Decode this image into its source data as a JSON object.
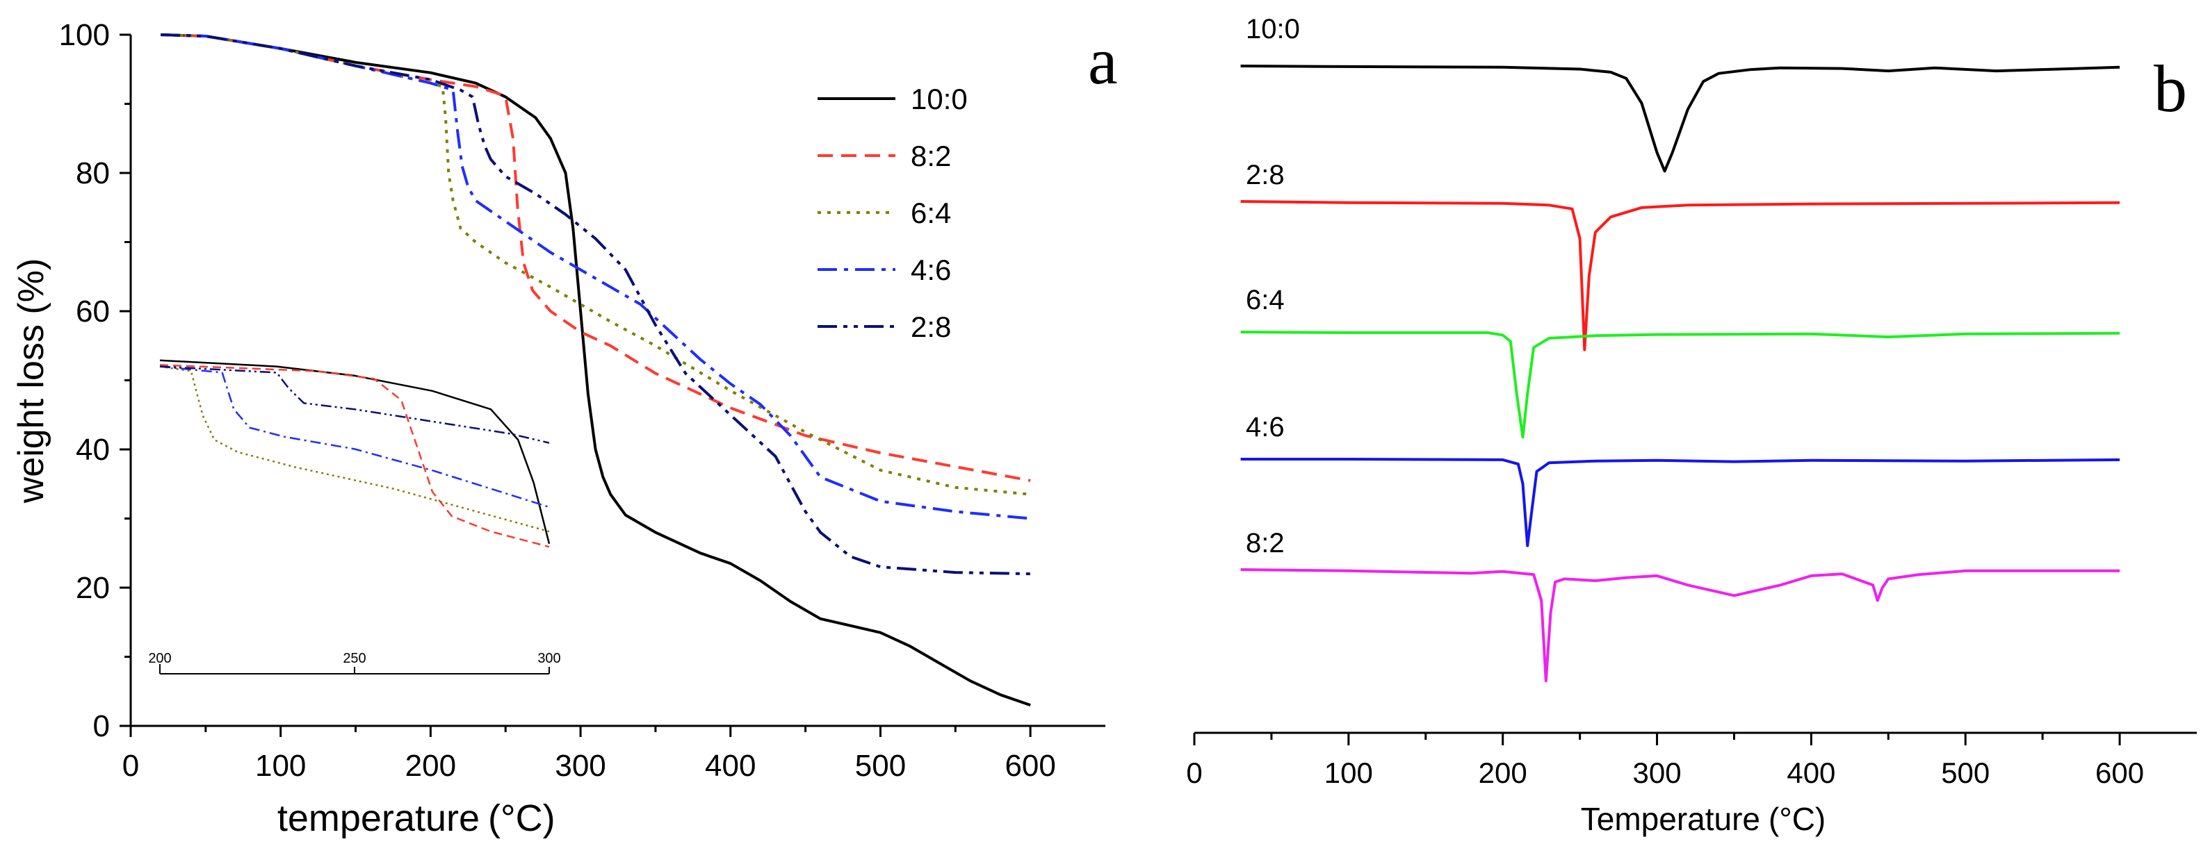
{
  "chart_data": [
    {
      "type": "line",
      "panel_label": "a",
      "xlabel": "temperature",
      "ylabel": "weight loss (%)",
      "x_unit": "(°C)",
      "xlim": [
        0,
        650
      ],
      "ylim": [
        0,
        100
      ],
      "xticks": [
        0,
        100,
        200,
        300,
        400,
        500,
        600
      ],
      "yticks": [
        0,
        20,
        40,
        60,
        80,
        100
      ],
      "legend_position": "top-right",
      "series": [
        {
          "name": "10:0",
          "color": "#000000",
          "dash": "solid",
          "x": [
            20,
            50,
            100,
            150,
            200,
            230,
            250,
            270,
            280,
            290,
            295,
            300,
            305,
            310,
            315,
            320,
            330,
            350,
            380,
            400,
            420,
            440,
            460,
            480,
            500,
            520,
            540,
            560,
            580,
            600
          ],
          "y": [
            100,
            99.8,
            98,
            96,
            94.5,
            93,
            91,
            88,
            85,
            80,
            72,
            60,
            48,
            40,
            36,
            33.5,
            30.5,
            28,
            25,
            23.5,
            21,
            18,
            15.5,
            14.5,
            13.5,
            11.5,
            9,
            6.5,
            4.5,
            3
          ]
        },
        {
          "name": "8:2",
          "color": "#ff3b30",
          "dash": "dashed",
          "x": [
            20,
            50,
            100,
            150,
            200,
            230,
            245,
            250,
            255,
            258,
            262,
            268,
            280,
            300,
            320,
            350,
            400,
            450,
            500,
            550,
            600
          ],
          "y": [
            100,
            99.8,
            98,
            95.5,
            93.5,
            92.5,
            91.5,
            91,
            85,
            75,
            67,
            63,
            60,
            57,
            55,
            51,
            46,
            42,
            39.5,
            37.5,
            35.5
          ]
        },
        {
          "name": "6:4",
          "color": "#808000",
          "dash": "dotted",
          "x": [
            20,
            50,
            100,
            150,
            200,
            208,
            210,
            212,
            215,
            220,
            230,
            250,
            280,
            300,
            320,
            350,
            400,
            450,
            500,
            550,
            600
          ],
          "y": [
            100,
            99.8,
            98,
            95.5,
            93,
            92.5,
            88,
            80,
            76,
            72,
            70,
            67,
            63.5,
            61,
            58.5,
            55,
            48.5,
            42.5,
            37,
            34.5,
            33.5
          ]
        },
        {
          "name": "4:6",
          "color": "#1f2eff",
          "dash": "dashdot",
          "x": [
            20,
            50,
            100,
            150,
            200,
            215,
            218,
            221,
            225,
            230,
            250,
            280,
            300,
            320,
            340,
            360,
            380,
            400,
            420,
            440,
            460,
            500,
            550,
            600
          ],
          "y": [
            100,
            99.8,
            98,
            95.5,
            93,
            92,
            86,
            81,
            78,
            76,
            73,
            68.5,
            66,
            63.5,
            61,
            57,
            53,
            49.5,
            46.5,
            42,
            36,
            32.5,
            31,
            30
          ]
        },
        {
          "name": "2:8",
          "color": "#0a1078",
          "dash": "dashdotdot",
          "x": [
            20,
            50,
            100,
            150,
            200,
            220,
            228,
            232,
            236,
            240,
            250,
            270,
            290,
            310,
            330,
            350,
            370,
            390,
            410,
            430,
            440,
            450,
            460,
            480,
            500,
            550,
            600
          ],
          "y": [
            100,
            99.8,
            98,
            95.5,
            93.5,
            92,
            91,
            87,
            84,
            82,
            79.5,
            77,
            74,
            70.5,
            66,
            58,
            51,
            47,
            43,
            39,
            35,
            31,
            28,
            24.5,
            23,
            22.2,
            22
          ]
        }
      ],
      "inset": {
        "xlim": [
          200,
          300
        ],
        "ylim": [
          0,
          100
        ],
        "xticks": [
          200,
          250,
          300
        ],
        "series": [
          {
            "name": "10:0",
            "x": [
              200,
              230,
              250,
              270,
              285,
              292,
              296,
              300
            ],
            "y": [
              98,
              96,
              93,
              88,
              82,
              72,
              58,
              38
            ]
          },
          {
            "name": "8:2",
            "x": [
              200,
              240,
              255,
              262,
              266,
              270,
              275,
              285,
              300
            ],
            "y": [
              96.5,
              94.5,
              92,
              85,
              70,
              55,
              47,
              42,
              37
            ]
          },
          {
            "name": "6:4",
            "x": [
              200,
              208,
              211,
              214,
              220,
              235,
              260,
              300
            ],
            "y": [
              96,
              94.5,
              80,
              72,
              68,
              63,
              56,
              42
            ]
          },
          {
            "name": "4:6",
            "x": [
              200,
              216,
              219,
              223,
              232,
              250,
              270,
              300
            ],
            "y": [
              96,
              94,
              82,
              76,
              73,
              69,
              62,
              50
            ]
          },
          {
            "name": "2:8",
            "x": [
              200,
              230,
              233,
              237,
              250,
              270,
              290,
              300
            ],
            "y": [
              96,
              94,
              89,
              84,
              82,
              78,
              74,
              71
            ]
          }
        ]
      }
    },
    {
      "type": "line",
      "panel_label": "b",
      "xlabel": "Temperature",
      "x_unit": "(°C)",
      "ylabel": "",
      "xlim": [
        0,
        650
      ],
      "xticks": [
        0,
        100,
        200,
        300,
        400,
        500,
        600
      ],
      "legend_position": "inline-left",
      "series": [
        {
          "name": "10:0",
          "color": "#000000",
          "offset": 4,
          "x": [
            30,
            100,
            200,
            250,
            270,
            280,
            290,
            300,
            305,
            310,
            320,
            330,
            340,
            360,
            380,
            420,
            450,
            480,
            520,
            560,
            600
          ],
          "y": [
            0,
            -0.1,
            -0.2,
            -0.5,
            -1,
            -2,
            -6,
            -14,
            -17,
            -14,
            -7,
            -2.5,
            -1.2,
            -0.6,
            -0.3,
            -0.4,
            -0.8,
            -0.3,
            -0.8,
            -0.5,
            -0.2
          ]
        },
        {
          "name": "2:8",
          "color": "#ff1a1a",
          "offset": 3,
          "x": [
            30,
            100,
            200,
            230,
            245,
            250,
            253,
            256,
            260,
            270,
            290,
            320,
            400,
            500,
            600
          ],
          "y": [
            0,
            -0.2,
            -0.3,
            -0.6,
            -1.2,
            -6,
            -24,
            -12,
            -5,
            -2.5,
            -1,
            -0.6,
            -0.4,
            -0.3,
            -0.2
          ]
        },
        {
          "name": "6:4",
          "color": "#22ee22",
          "offset": 2,
          "x": [
            30,
            100,
            190,
            200,
            205,
            209,
            213,
            216,
            220,
            230,
            260,
            300,
            400,
            450,
            500,
            600
          ],
          "y": [
            0,
            -0.1,
            -0.1,
            -0.5,
            -1.5,
            -10,
            -17,
            -10,
            -2.5,
            -1,
            -0.6,
            -0.4,
            -0.3,
            -0.8,
            -0.3,
            -0.2
          ]
        },
        {
          "name": "4:6",
          "color": "#1515ee",
          "offset": 1,
          "x": [
            30,
            100,
            200,
            210,
            213,
            216,
            219,
            222,
            230,
            260,
            300,
            350,
            400,
            500,
            600
          ],
          "y": [
            0,
            0,
            -0.1,
            -0.8,
            -4,
            -14,
            -8,
            -2,
            -0.6,
            -0.3,
            -0.2,
            -0.4,
            -0.2,
            -0.3,
            -0.1
          ]
        },
        {
          "name": "8:2",
          "color": "#ee22ee",
          "offset": 0,
          "x": [
            30,
            100,
            180,
            200,
            220,
            225,
            228,
            231,
            234,
            240,
            260,
            280,
            300,
            320,
            350,
            380,
            400,
            420,
            440,
            443,
            446,
            450,
            470,
            500,
            600
          ],
          "y": [
            0,
            -0.2,
            -0.6,
            -0.3,
            -0.8,
            -5,
            -18,
            -7,
            -2,
            -1.5,
            -1.8,
            -1.3,
            -1,
            -2.5,
            -4.2,
            -2.5,
            -1,
            -0.7,
            -2.5,
            -5,
            -3,
            -1.5,
            -0.8,
            -0.2,
            -0.2
          ]
        }
      ]
    }
  ]
}
